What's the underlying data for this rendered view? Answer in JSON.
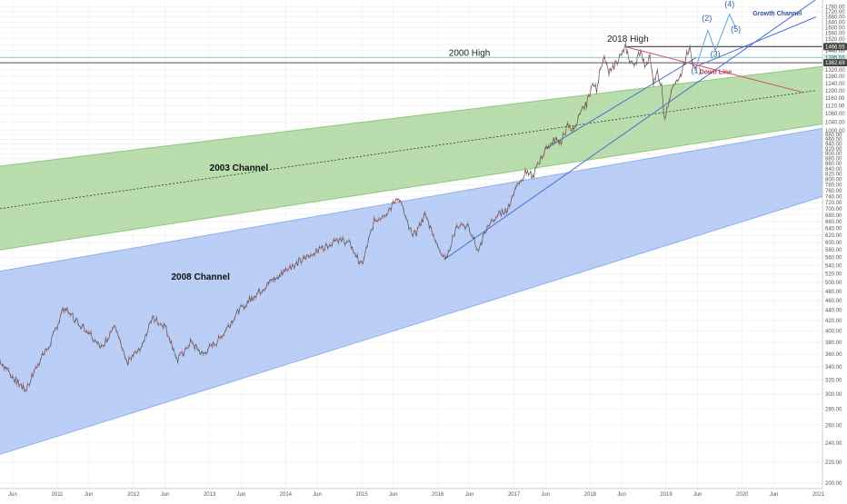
{
  "chart_data": {
    "type": "line",
    "y_scale": "log",
    "ylim": [
      195,
      1800
    ],
    "xlim": [
      "2010-04-01",
      "2021-01-20"
    ],
    "grid": true,
    "y_ticks": [
      200,
      220,
      240,
      260,
      280,
      300,
      320,
      340,
      360,
      380,
      400,
      420,
      440,
      460,
      480,
      500,
      520,
      540,
      560,
      580,
      600,
      620,
      640,
      660,
      680,
      700,
      720,
      740,
      760,
      780,
      800,
      820,
      840,
      860,
      880,
      900,
      920,
      940,
      960,
      980,
      1000,
      1040,
      1080,
      1120,
      1160,
      1200,
      1240,
      1280,
      1320,
      1360,
      1400,
      1440,
      1480,
      1520,
      1560,
      1600,
      1640,
      1680,
      1720,
      1760
    ],
    "y_tick_labels": [
      "200.00",
      "220.00",
      "240.00",
      "260.00",
      "280.00",
      "300.00",
      "320.00",
      "340.00",
      "360.00",
      "380.00",
      "400.00",
      "420.00",
      "440.00",
      "460.00",
      "480.00",
      "500.00",
      "520.00",
      "540.00",
      "560.00",
      "580.00",
      "600.00",
      "620.00",
      "640.00",
      "660.00",
      "680.00",
      "700.00",
      "720.00",
      "740.00",
      "760.00",
      "780.00",
      "800.00",
      "820.00",
      "840.00",
      "860.00",
      "880.00",
      "900.00",
      "920.00",
      "940.00",
      "960.00",
      "980.00",
      "1000.00",
      "1040.00",
      "1080.00",
      "1120.00",
      "1160.00",
      "1200.00",
      "1240.00",
      "1280.00",
      "1320.00",
      "1360.00",
      "1400.00",
      "1440.00",
      "1480.00",
      "1520.00",
      "1560.00",
      "1600.00",
      "1640.00",
      "1680.00",
      "1720.00",
      "1760.00"
    ],
    "x_ticks": [
      {
        "date": "2010-06-01",
        "label": "Jun"
      },
      {
        "date": "2011-01-01",
        "label": "2011"
      },
      {
        "date": "2011-06-01",
        "label": "Jun"
      },
      {
        "date": "2012-01-01",
        "label": "2012"
      },
      {
        "date": "2012-06-01",
        "label": "Jun"
      },
      {
        "date": "2013-01-01",
        "label": "2013"
      },
      {
        "date": "2013-06-01",
        "label": "Jun"
      },
      {
        "date": "2014-01-01",
        "label": "2014"
      },
      {
        "date": "2014-06-01",
        "label": "Jun"
      },
      {
        "date": "2015-01-01",
        "label": "2015"
      },
      {
        "date": "2015-06-01",
        "label": "Jun"
      },
      {
        "date": "2016-01-01",
        "label": "2016"
      },
      {
        "date": "2016-06-01",
        "label": "Jun"
      },
      {
        "date": "2017-01-01",
        "label": "2017"
      },
      {
        "date": "2017-06-01",
        "label": "Jun"
      },
      {
        "date": "2018-01-01",
        "label": "2018"
      },
      {
        "date": "2018-06-01",
        "label": "Jun"
      },
      {
        "date": "2019-01-01",
        "label": "2019"
      },
      {
        "date": "2019-06-01",
        "label": "Jun"
      },
      {
        "date": "2020-01-01",
        "label": "2020"
      },
      {
        "date": "2020-06-01",
        "label": "Jun"
      },
      {
        "date": "2021-01-01",
        "label": "2021"
      }
    ],
    "price_series": [
      [
        "2010-04-01",
        350
      ],
      [
        "2010-06-01",
        325
      ],
      [
        "2010-08-01",
        305
      ],
      [
        "2010-10-01",
        345
      ],
      [
        "2010-12-01",
        380
      ],
      [
        "2011-02-01",
        445
      ],
      [
        "2011-04-01",
        420
      ],
      [
        "2011-06-01",
        400
      ],
      [
        "2011-08-01",
        370
      ],
      [
        "2011-10-01",
        410
      ],
      [
        "2011-12-01",
        345
      ],
      [
        "2012-02-01",
        370
      ],
      [
        "2012-04-01",
        425
      ],
      [
        "2012-06-01",
        410
      ],
      [
        "2012-08-01",
        350
      ],
      [
        "2012-10-01",
        380
      ],
      [
        "2012-12-01",
        360
      ],
      [
        "2013-03-01",
        390
      ],
      [
        "2013-05-01",
        430
      ],
      [
        "2013-08-01",
        470
      ],
      [
        "2013-11-01",
        505
      ],
      [
        "2014-02-01",
        540
      ],
      [
        "2014-04-01",
        555
      ],
      [
        "2014-06-01",
        575
      ],
      [
        "2014-09-01",
        610
      ],
      [
        "2014-11-01",
        600
      ],
      [
        "2015-01-01",
        540
      ],
      [
        "2015-03-01",
        660
      ],
      [
        "2015-05-01",
        690
      ],
      [
        "2015-07-01",
        735
      ],
      [
        "2015-08-15",
        640
      ],
      [
        "2015-09-15",
        620
      ],
      [
        "2015-11-01",
        680
      ],
      [
        "2016-01-01",
        590
      ],
      [
        "2016-02-10",
        555
      ],
      [
        "2016-04-01",
        650
      ],
      [
        "2016-06-01",
        640
      ],
      [
        "2016-07-15",
        575
      ],
      [
        "2016-08-15",
        630
      ],
      [
        "2016-10-15",
        680
      ],
      [
        "2016-12-01",
        700
      ],
      [
        "2017-01-15",
        780
      ],
      [
        "2017-03-01",
        830
      ],
      [
        "2017-04-01",
        810
      ],
      [
        "2017-05-15",
        890
      ],
      [
        "2017-06-15",
        930
      ],
      [
        "2017-07-15",
        960
      ],
      [
        "2017-08-15",
        950
      ],
      [
        "2017-09-15",
        1020
      ],
      [
        "2017-10-15",
        1000
      ],
      [
        "2017-11-15",
        1080
      ],
      [
        "2017-12-15",
        1130
      ],
      [
        "2018-01-15",
        1250
      ],
      [
        "2018-02-01",
        1200
      ],
      [
        "2018-02-20",
        1350
      ],
      [
        "2018-03-10",
        1380
      ],
      [
        "2018-04-01",
        1300
      ],
      [
        "2018-05-01",
        1350
      ],
      [
        "2018-06-01",
        1420
      ],
      [
        "2018-06-20",
        1466
      ],
      [
        "2018-07-10",
        1380
      ],
      [
        "2018-08-01",
        1350
      ],
      [
        "2018-09-01",
        1440
      ],
      [
        "2018-09-20",
        1350
      ],
      [
        "2018-10-15",
        1400
      ],
      [
        "2018-11-01",
        1230
      ],
      [
        "2018-11-20",
        1300
      ],
      [
        "2018-12-10",
        1220
      ],
      [
        "2018-12-24",
        1050
      ],
      [
        "2019-01-15",
        1150
      ],
      [
        "2019-02-15",
        1250
      ],
      [
        "2019-03-15",
        1300
      ],
      [
        "2019-04-10",
        1420
      ],
      [
        "2019-04-25",
        1465
      ],
      [
        "2019-05-10",
        1360
      ],
      [
        "2019-05-25",
        1340
      ]
    ],
    "projection_path": [
      [
        "2019-05-25",
        1340
      ],
      [
        "2019-07-20",
        1580
      ],
      [
        "2019-08-25",
        1440
      ],
      [
        "2019-11-01",
        1700
      ],
      [
        "2019-12-01",
        1600
      ]
    ],
    "wave_labels": [
      {
        "label": "(1)",
        "date": "2019-05-25",
        "value": 1300
      },
      {
        "label": "(2)",
        "date": "2019-07-15",
        "value": 1650
      },
      {
        "label": "(3)",
        "date": "2019-08-25",
        "value": 1400
      },
      {
        "label": "(4)",
        "date": "2019-11-01",
        "value": 1760
      },
      {
        "label": "(5)",
        "date": "2019-12-01",
        "value": 1570
      }
    ],
    "horizontal_levels": [
      {
        "name": "2018 High",
        "value": 1466.55,
        "tag": "1466.55",
        "color": "#555555",
        "start": "2018-06-20",
        "width": 1.2
      },
      {
        "name": "2000 High",
        "value": 1395.55,
        "tag": "1395.55",
        "color": "#9fc9c9",
        "start": "2010-04-01",
        "width": 1
      },
      {
        "name": "",
        "value": 1362.69,
        "tag": "1362.69",
        "color": "#555555",
        "start": "2010-04-01",
        "width": 1
      }
    ],
    "level_labels": [
      {
        "text": "2018 High",
        "date": "2018-07-01",
        "value": 1500,
        "size": 10
      },
      {
        "text": "2000 High",
        "date": "2016-06-01",
        "value": 1405,
        "size": 10
      }
    ],
    "channels": [
      {
        "name": "2003 Channel",
        "color": "#8ec87a",
        "fill_opacity": 0.62,
        "upper": [
          [
            "2010-04-01",
            850
          ],
          [
            "2021-01-20",
            1340
          ]
        ],
        "lower": [
          [
            "2010-04-01",
            580
          ],
          [
            "2021-01-20",
            1030
          ]
        ],
        "mid": [
          [
            "2010-04-01",
            700
          ],
          [
            "2020-12-15",
            1200
          ]
        ],
        "label_date": "2013-01-01",
        "label_value": 830
      },
      {
        "name": "2008 Channel",
        "color": "#8fb0f0",
        "fill_opacity": 0.62,
        "upper": [
          [
            "2010-04-01",
            526
          ],
          [
            "2021-01-20",
            1010
          ]
        ],
        "lower": [
          [
            "2010-04-01",
            228
          ],
          [
            "2021-01-20",
            740
          ]
        ],
        "label_date": "2013-01-01",
        "label_value": 505
      }
    ],
    "trend_lines": [
      {
        "name": "Growth Channel",
        "color": "#4a6fd4",
        "points": [
          [
            "2016-02-01",
            555
          ],
          [
            "2020-12-20",
            1820
          ]
        ]
      },
      {
        "name": "",
        "color": "#4a6fd4",
        "points": [
          [
            "2019-05-25",
            1340
          ],
          [
            "2020-12-20",
            1680
          ]
        ]
      },
      {
        "name": "",
        "color": "#4a6fd4",
        "points": [
          [
            "2017-06-01",
            920
          ],
          [
            "2019-05-25",
            1395
          ]
        ]
      },
      {
        "name": "Down Line",
        "color": "#d0506a",
        "points": [
          [
            "2018-06-20",
            1466
          ],
          [
            "2020-10-20",
            1190
          ]
        ]
      }
    ],
    "text_labels": [
      {
        "text": "2003 Channel",
        "date": "2013-01-01",
        "value": 832,
        "size": 10,
        "color": "#111111",
        "bold": true
      },
      {
        "text": "2008 Channel",
        "date": "2012-07-01",
        "value": 506,
        "size": 10,
        "color": "#111111",
        "bold": true
      },
      {
        "text": "Growth Channel",
        "date": "2020-02-20",
        "value": 1690,
        "size": 7,
        "color": "#2d4ea3",
        "bold": true
      },
      {
        "text": "Down Line",
        "date": "2019-06-10",
        "value": 1295,
        "size": 7,
        "color": "#b0334e",
        "bold": true
      }
    ]
  }
}
